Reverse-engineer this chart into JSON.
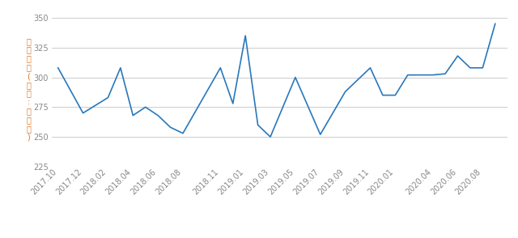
{
  "data_points": [
    [
      0,
      308
    ],
    [
      2,
      270
    ],
    [
      4,
      283
    ],
    [
      5,
      308
    ],
    [
      6,
      268
    ],
    [
      7,
      275
    ],
    [
      8,
      268
    ],
    [
      9,
      258
    ],
    [
      10,
      253
    ],
    [
      13,
      308
    ],
    [
      14,
      278
    ],
    [
      15,
      335
    ],
    [
      16,
      260
    ],
    [
      17,
      250
    ],
    [
      19,
      300
    ],
    [
      21,
      252
    ],
    [
      23,
      288
    ],
    [
      25,
      308
    ],
    [
      26,
      285
    ],
    [
      27,
      285
    ],
    [
      28,
      302
    ],
    [
      30,
      302
    ],
    [
      31,
      303
    ],
    [
      32,
      318
    ],
    [
      33,
      308
    ],
    [
      34,
      308
    ],
    [
      35,
      345
    ]
  ],
  "tick_positions": [
    0,
    2,
    4,
    6,
    8,
    10,
    13,
    15,
    17,
    19,
    21,
    23,
    25,
    27,
    30,
    32,
    34
  ],
  "tick_labels": [
    "2017.10",
    "2017.12",
    "2018.02",
    "2018.04",
    "2018.06",
    "2018.08",
    "2018.11",
    "2019.01",
    "2019.03",
    "2019.05",
    "2019.07",
    "2019.09",
    "2019.11",
    "2020.01",
    "2020.04",
    "2020.06",
    "2020.08"
  ],
  "line_color": "#2878bd",
  "ylabel": "거래금액(단위:백만원)",
  "ylim": [
    225,
    355
  ],
  "yticks": [
    225,
    250,
    275,
    300,
    325,
    350
  ],
  "xlim": [
    -0.5,
    36
  ],
  "background_color": "#ffffff",
  "grid_color": "#cccccc",
  "axis_label_color": "#e07020",
  "tick_color": "#888888",
  "linewidth": 1.2,
  "tick_fontsize": 7,
  "ylabel_fontsize": 7
}
